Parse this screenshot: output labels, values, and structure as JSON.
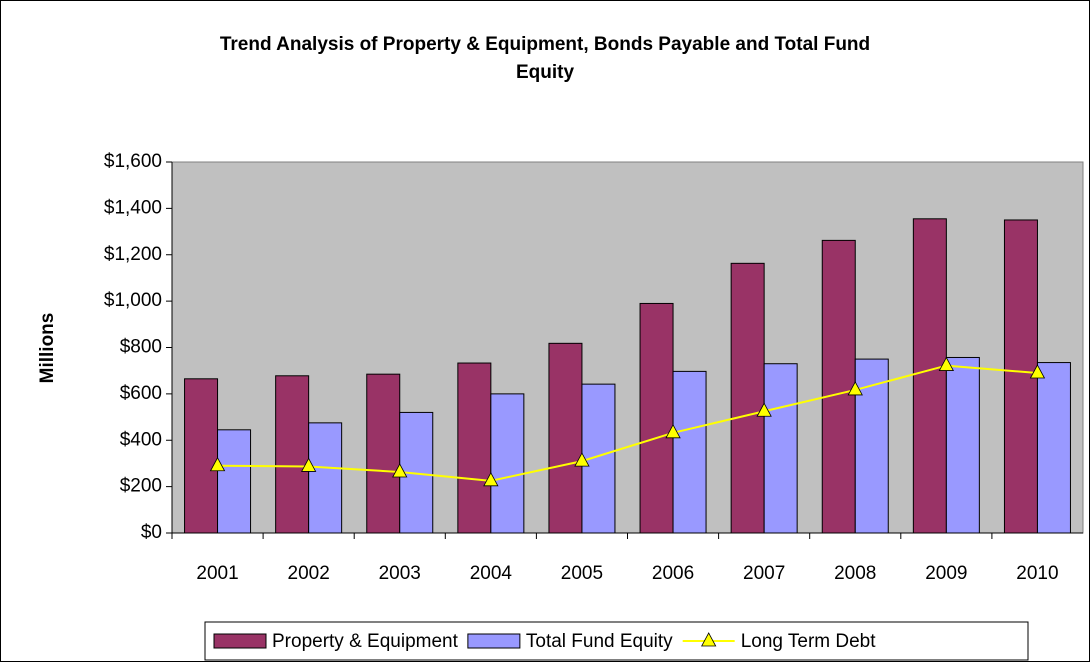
{
  "chart_data": {
    "type": "bar_line",
    "title": [
      "Trend Analysis of Property & Equipment, Bonds Payable and Total Fund",
      "Equity"
    ],
    "y_label": "Millions",
    "categories": [
      "2001",
      "2002",
      "2003",
      "2004",
      "2005",
      "2006",
      "2007",
      "2008",
      "2009",
      "2010"
    ],
    "series": [
      {
        "name": "Property & Equipment",
        "type": "bar",
        "color": "#993366",
        "values": [
          665,
          678,
          685,
          733,
          818,
          990,
          1163,
          1262,
          1355,
          1350
        ]
      },
      {
        "name": "Total Fund Equity",
        "type": "bar",
        "color": "#9999ff",
        "values": [
          445,
          475,
          520,
          600,
          642,
          697,
          730,
          750,
          757,
          735
        ]
      },
      {
        "name": "Long Term Debt",
        "type": "line",
        "color": "#ffff00",
        "values": [
          290,
          287,
          263,
          225,
          310,
          432,
          525,
          617,
          722,
          690
        ]
      }
    ],
    "ylim": [
      0,
      1600
    ],
    "yticks": [
      {
        "value": 0,
        "label": "$0"
      },
      {
        "value": 200,
        "label": "$200"
      },
      {
        "value": 400,
        "label": "$400"
      },
      {
        "value": 600,
        "label": "$600"
      },
      {
        "value": 800,
        "label": "$800"
      },
      {
        "value": 1000,
        "label": "$1,000"
      },
      {
        "value": 1200,
        "label": "$1,200"
      },
      {
        "value": 1400,
        "label": "$1,400"
      },
      {
        "value": 1600,
        "label": "$1,600"
      }
    ],
    "plot_background": "#c0c0c0",
    "legend": "bottom"
  }
}
